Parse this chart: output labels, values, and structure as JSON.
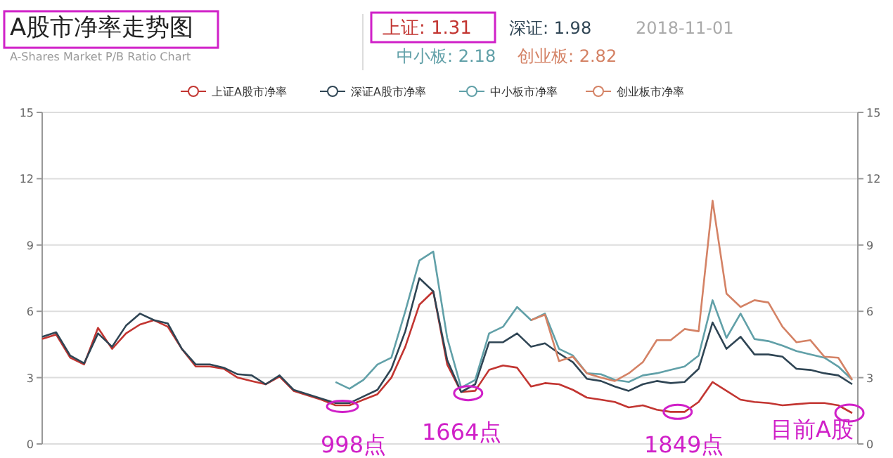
{
  "chart_data": {
    "type": "line",
    "title": "A股市净率走势图",
    "subtitle": "A-Shares Market P/B Ratio Chart",
    "annotations": [
      "上证: 1.31",
      "深证: 1.98",
      "中小板: 2.18",
      "创业板: 2.82",
      "2018-11-01",
      "998点",
      "1664点",
      "1849点",
      "目前A股"
    ],
    "categories": [
      null,
      null,
      null,
      null,
      null,
      null,
      null,
      null,
      null,
      null,
      null,
      null,
      null,
      null,
      null,
      null,
      null,
      null,
      null,
      null,
      null,
      null,
      null,
      null,
      null,
      null,
      null,
      null,
      null,
      null,
      null,
      null,
      null,
      null,
      null,
      null,
      null,
      null,
      null,
      null,
      null,
      null,
      null,
      null,
      null,
      null,
      null,
      null,
      null,
      null,
      null,
      null,
      null,
      null,
      null,
      null,
      null,
      null,
      null
    ],
    "ylim": [
      0,
      15
    ],
    "yticks": [
      0,
      3,
      6,
      9,
      12,
      15
    ],
    "y2lim": [
      0,
      15
    ],
    "y2ticks": [
      0,
      3,
      6,
      9,
      12,
      15
    ],
    "grid": "y",
    "legend": "top",
    "tick_labels": "y",
    "series": [
      {
        "name": "上证A股市净率",
        "color": "#c23531",
        "values": [
          4.75,
          4.95,
          3.9,
          3.6,
          5.25,
          4.3,
          5.0,
          5.4,
          5.6,
          5.3,
          4.3,
          3.5,
          3.5,
          3.4,
          3.0,
          2.85,
          2.7,
          3.05,
          2.4,
          2.2,
          2.0,
          1.75,
          1.75,
          2.0,
          2.25,
          3.0,
          4.4,
          6.3,
          6.9,
          3.6,
          2.35,
          2.4,
          3.35,
          3.55,
          3.45,
          2.6,
          2.75,
          2.7,
          2.45,
          2.1,
          2.0,
          1.9,
          1.65,
          1.75,
          1.55,
          1.45,
          1.45,
          1.9,
          2.8,
          2.4,
          2.0,
          1.9,
          1.85,
          1.75,
          1.8,
          1.85,
          1.85,
          1.75,
          1.4
        ]
      },
      {
        "name": "深证A股市净率",
        "color": "#2f4554",
        "values": [
          4.85,
          5.05,
          4.0,
          3.65,
          5.0,
          4.4,
          5.35,
          5.9,
          5.6,
          5.45,
          4.3,
          3.6,
          3.6,
          3.45,
          3.15,
          3.1,
          2.7,
          3.1,
          2.45,
          2.25,
          2.05,
          1.85,
          1.85,
          2.15,
          2.45,
          3.4,
          5.1,
          7.5,
          6.9,
          3.8,
          2.35,
          2.7,
          4.6,
          4.6,
          5.0,
          4.4,
          4.55,
          4.1,
          3.7,
          2.95,
          2.85,
          2.6,
          2.4,
          2.7,
          2.85,
          2.75,
          2.8,
          3.4,
          5.5,
          4.3,
          4.85,
          4.05,
          4.05,
          3.95,
          3.4,
          3.35,
          3.2,
          3.1,
          2.7
        ]
      },
      {
        "name": "中小板市净率",
        "color": "#61a0a8",
        "values": [
          null,
          null,
          null,
          null,
          null,
          null,
          null,
          null,
          null,
          null,
          null,
          null,
          null,
          null,
          null,
          null,
          null,
          null,
          null,
          null,
          null,
          2.8,
          2.5,
          2.9,
          3.6,
          3.9,
          6.0,
          8.3,
          8.7,
          4.8,
          2.55,
          2.9,
          5.0,
          5.3,
          6.2,
          5.6,
          5.9,
          4.3,
          4.0,
          3.2,
          3.15,
          2.9,
          2.8,
          3.1,
          3.2,
          3.35,
          3.5,
          4.0,
          6.5,
          4.8,
          5.9,
          4.75,
          4.65,
          4.45,
          4.2,
          4.05,
          3.9,
          3.5,
          2.9
        ]
      },
      {
        "name": "创业板市净率",
        "color": "#d48265",
        "values": [
          null,
          null,
          null,
          null,
          null,
          null,
          null,
          null,
          null,
          null,
          null,
          null,
          null,
          null,
          null,
          null,
          null,
          null,
          null,
          null,
          null,
          null,
          null,
          null,
          null,
          null,
          null,
          null,
          null,
          null,
          null,
          null,
          null,
          null,
          null,
          5.6,
          5.85,
          3.75,
          3.95,
          3.2,
          3.0,
          2.85,
          3.2,
          3.7,
          4.7,
          4.7,
          5.2,
          5.1,
          11.0,
          6.8,
          6.2,
          6.5,
          6.4,
          5.3,
          4.6,
          4.7,
          3.95,
          3.9,
          2.9
        ]
      }
    ]
  }
}
